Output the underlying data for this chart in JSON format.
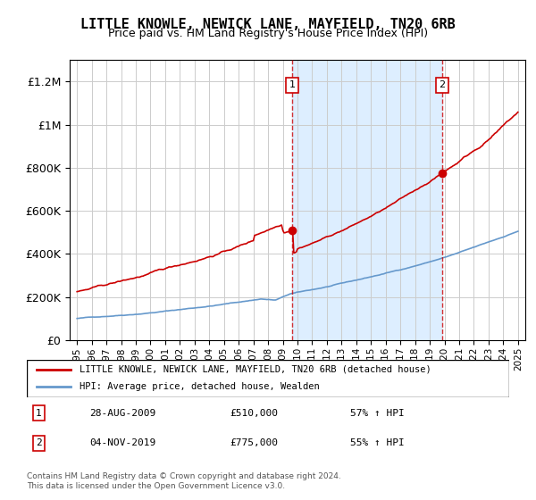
{
  "title": "LITTLE KNOWLE, NEWICK LANE, MAYFIELD, TN20 6RB",
  "subtitle": "Price paid vs. HM Land Registry's House Price Index (HPI)",
  "legend_line1": "LITTLE KNOWLE, NEWICK LANE, MAYFIELD, TN20 6RB (detached house)",
  "legend_line2": "HPI: Average price, detached house, Wealden",
  "annotation1": [
    "1",
    "28-AUG-2009",
    "£510,000",
    "57% ↑ HPI"
  ],
  "annotation2": [
    "2",
    "04-NOV-2019",
    "£775,000",
    "55% ↑ HPI"
  ],
  "footnote": "Contains HM Land Registry data © Crown copyright and database right 2024.\nThis data is licensed under the Open Government Licence v3.0.",
  "vline1_x": 2009.65,
  "vline2_x": 2019.84,
  "ylim": [
    0,
    1300000
  ],
  "xlim": [
    1994.5,
    2025.5
  ],
  "yticks": [
    0,
    200000,
    400000,
    600000,
    800000,
    1000000,
    1200000
  ],
  "ytick_labels": [
    "£0",
    "£200K",
    "£400K",
    "£600K",
    "£800K",
    "£1M",
    "£1.2M"
  ],
  "red_color": "#cc0000",
  "blue_color": "#6699cc",
  "shade_color": "#ddeeff",
  "hatch_color": "#cccccc"
}
